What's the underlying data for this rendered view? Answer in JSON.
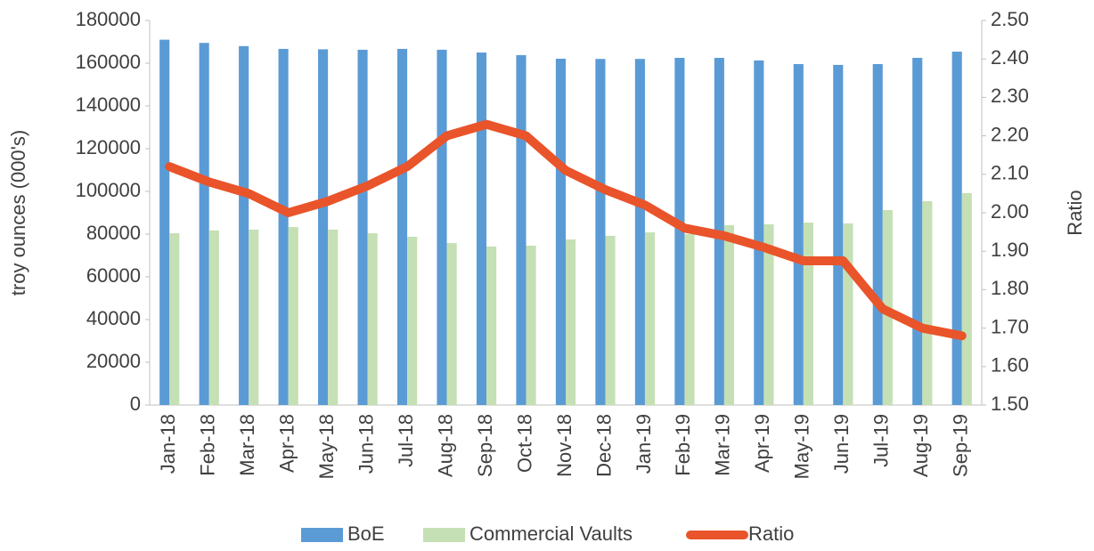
{
  "chart_data": {
    "type": "bar+line",
    "y_label": "troy ounces (000's)",
    "y2_label": "Ratio",
    "categories": [
      "Jan-18",
      "Feb-18",
      "Mar-18",
      "Apr-18",
      "May-18",
      "Jun-18",
      "Jul-18",
      "Aug-18",
      "Sep-18",
      "Oct-18",
      "Nov-18",
      "Dec-18",
      "Jan-19",
      "Feb-19",
      "Mar-19",
      "Apr-19",
      "May-19",
      "Jun-19",
      "Jul-19",
      "Aug-19",
      "Sep-19"
    ],
    "series": [
      {
        "name": "BoE",
        "type": "bar",
        "color": "#5b9bd5",
        "values": [
          171000,
          169500,
          168000,
          166700,
          166500,
          166300,
          166700,
          166300,
          165000,
          163800,
          162100,
          162000,
          162000,
          162500,
          162500,
          161300,
          159600,
          159200,
          159600,
          162500,
          165400
        ]
      },
      {
        "name": "Commercial Vaults",
        "type": "bar",
        "color": "#c5e0b4",
        "values": [
          80400,
          81700,
          82100,
          83300,
          82100,
          80400,
          78750,
          75800,
          74200,
          74600,
          77500,
          79200,
          80800,
          80000,
          84200,
          84600,
          85400,
          85000,
          91250,
          95400,
          99200
        ]
      },
      {
        "name": "Ratio",
        "type": "line",
        "axis": "y2",
        "color": "#e9542a",
        "values": [
          2.12,
          2.08,
          2.05,
          2.0,
          2.03,
          2.07,
          2.12,
          2.2,
          2.23,
          2.2,
          2.11,
          2.06,
          2.02,
          1.96,
          1.94,
          1.91,
          1.875,
          1.875,
          1.75,
          1.7,
          1.68
        ]
      }
    ],
    "ylim": [
      0,
      180000
    ],
    "yticks": [
      0,
      20000,
      40000,
      60000,
      80000,
      100000,
      120000,
      140000,
      160000,
      180000
    ],
    "y2lim": [
      1.5,
      2.5
    ],
    "y2ticks": [
      {
        "value": 1.5,
        "label": "1.50"
      },
      {
        "value": 1.6,
        "label": "1.60"
      },
      {
        "value": 1.7,
        "label": "1.70"
      },
      {
        "value": 1.8,
        "label": "1.80"
      },
      {
        "value": 1.9,
        "label": "1.90"
      },
      {
        "value": 2.0,
        "label": "2.00"
      },
      {
        "value": 2.1,
        "label": "2.10"
      },
      {
        "value": 2.2,
        "label": "2.20"
      },
      {
        "value": 2.3,
        "label": "2.30"
      },
      {
        "value": 2.4,
        "label": "2.40"
      },
      {
        "value": 2.5,
        "label": "2.50"
      }
    ],
    "legend": "bottom"
  }
}
